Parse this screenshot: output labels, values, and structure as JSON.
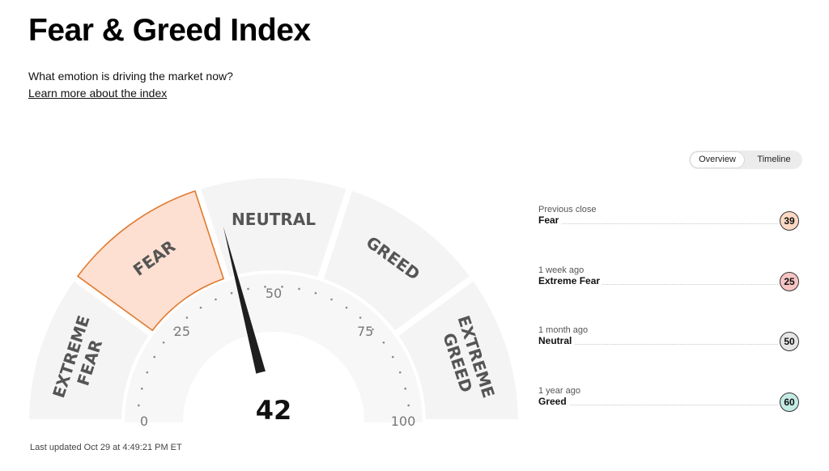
{
  "header": {
    "title": "Fear & Greed Index",
    "subtitle": "What emotion is driving the market now?",
    "learn_more": "Learn more about the index"
  },
  "view_toggle": {
    "options": [
      "Overview",
      "Timeline"
    ],
    "selected": "Overview"
  },
  "gauge": {
    "value": 42,
    "value_label": "42",
    "active_segment": "FEAR",
    "active_color": "#fde0d2",
    "active_border": "#e07a2f",
    "segments": [
      {
        "lines": [
          "EXTREME",
          "FEAR"
        ]
      },
      {
        "lines": [
          "FEAR"
        ]
      },
      {
        "lines": [
          "NEUTRAL"
        ]
      },
      {
        "lines": [
          "GREED"
        ]
      },
      {
        "lines": [
          "EXTREME",
          "GREED"
        ]
      }
    ],
    "ticks": [
      "0",
      "25",
      "50",
      "75",
      "100"
    ]
  },
  "last_updated": "Last updated Oct 29 at 4:49:21 PM ET",
  "history": [
    {
      "when": "Previous close",
      "label": "Fear",
      "value": "39",
      "color": "#fcd9c4"
    },
    {
      "when": "1 week ago",
      "label": "Extreme Fear",
      "value": "25",
      "color": "#f7c4c4"
    },
    {
      "when": "1 month ago",
      "label": "Neutral",
      "value": "50",
      "color": "#e6e6e6"
    },
    {
      "when": "1 year ago",
      "label": "Greed",
      "value": "60",
      "color": "#c4ebe4"
    }
  ]
}
